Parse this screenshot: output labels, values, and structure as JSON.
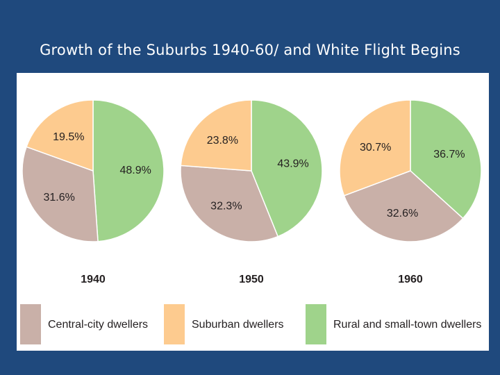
{
  "slide": {
    "title": "Growth of the Suburbs 1940-60/ and White Flight Begins"
  },
  "colors": {
    "background": "#1f497d",
    "central_city": "#c9b0a8",
    "suburban": "#fdcb8f",
    "rural": "#9fd38b"
  },
  "chart_data": {
    "type": "pie",
    "categories": [
      "Central-city dwellers",
      "Suburban dwellers",
      "Rural and small-town dwellers"
    ],
    "series": [
      {
        "name": "1940",
        "values": [
          31.6,
          19.5,
          48.9
        ],
        "labels": [
          "31.6%",
          "19.5%",
          "48.9%"
        ]
      },
      {
        "name": "1950",
        "values": [
          32.3,
          23.8,
          43.9
        ],
        "labels": [
          "32.3%",
          "23.8%",
          "43.9%"
        ]
      },
      {
        "name": "1960",
        "values": [
          32.6,
          30.7,
          36.7
        ],
        "labels": [
          "32.6%",
          "30.7%",
          "36.7%"
        ]
      }
    ],
    "legend": {
      "placement": "bottom",
      "entries": [
        "Central-city dwellers",
        "Suburban dwellers",
        "Rural and small-town dwellers"
      ]
    }
  }
}
